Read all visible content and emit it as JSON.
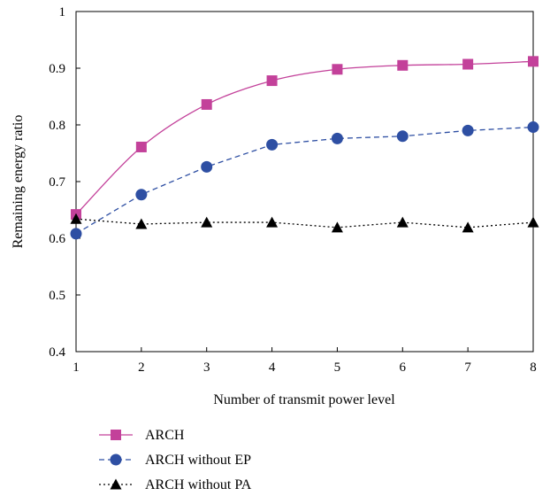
{
  "chart_data": {
    "type": "line",
    "title": "",
    "xlabel": "Number of transmit power level",
    "ylabel": "Remaining energy ratio",
    "xlim": [
      1,
      8
    ],
    "ylim": [
      0.4,
      1.0
    ],
    "x": [
      1,
      2,
      3,
      4,
      5,
      6,
      7,
      8
    ],
    "xticks": [
      "1",
      "2",
      "3",
      "4",
      "5",
      "6",
      "7",
      "8"
    ],
    "yticks": [
      "0.4",
      "0.5",
      "0.6",
      "0.7",
      "0.8",
      "0.9",
      "1"
    ],
    "grid": false,
    "legend_position": "bottom-left, below plot",
    "series": [
      {
        "name": "ARCH",
        "values": [
          0.642,
          0.761,
          0.836,
          0.878,
          0.898,
          0.905,
          0.907,
          0.912
        ],
        "color": "#c3419a",
        "marker": "square",
        "line": "solid",
        "curve": "smooth"
      },
      {
        "name": "ARCH without EP",
        "values": [
          0.608,
          0.677,
          0.726,
          0.765,
          0.776,
          0.78,
          0.79,
          0.796
        ],
        "color": "#2e4fa3",
        "marker": "circle",
        "line": "dashed",
        "curve": "linear"
      },
      {
        "name": "ARCH without PA",
        "values": [
          0.634,
          0.625,
          0.628,
          0.628,
          0.619,
          0.628,
          0.619,
          0.628
        ],
        "color": "#000000",
        "marker": "triangle",
        "line": "dotted",
        "curve": "linear"
      }
    ]
  }
}
